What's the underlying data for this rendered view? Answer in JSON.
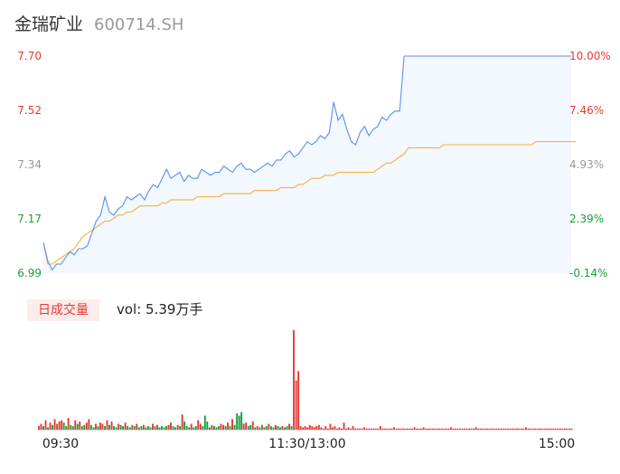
{
  "stock": {
    "name": "金瑞矿业",
    "code": "600714.SH"
  },
  "volume_tab": {
    "label": "日成交量",
    "summary": "vol: 5.39万手"
  },
  "colors": {
    "up": "#e53935",
    "down": "#1a9e3c",
    "neutral": "#999999",
    "price_line": "#5b8ff0",
    "avg_line": "#f0b23c",
    "area_fill": "#f3f7fe"
  },
  "chart_data": {
    "type": "line",
    "x_ticks": [
      "09:30",
      "11:30/13:00",
      "15:00"
    ],
    "y_left_ticks": [
      "7.70",
      "7.52",
      "7.34",
      "7.17",
      "6.99"
    ],
    "y_right_ticks": [
      "10.00%",
      "7.46%",
      "4.93%",
      "2.39%",
      "-0.14%"
    ],
    "ylim": [
      6.99,
      7.7
    ],
    "series": [
      {
        "values": [
          7.09,
          7.03,
          7.0,
          7.02,
          7.02,
          7.04,
          7.06,
          7.05,
          7.07,
          7.07,
          7.08,
          7.12,
          7.16,
          7.18,
          7.24,
          7.19,
          7.18,
          7.2,
          7.21,
          7.24,
          7.23,
          7.24,
          7.25,
          7.23,
          7.26,
          7.28,
          7.27,
          7.3,
          7.33,
          7.3,
          7.31,
          7.32,
          7.29,
          7.31,
          7.3,
          7.3,
          7.33,
          7.32,
          7.31,
          7.32,
          7.32,
          7.34,
          7.33,
          7.32,
          7.34,
          7.35,
          7.33,
          7.33,
          7.32,
          7.33,
          7.34,
          7.35,
          7.34,
          7.36,
          7.36,
          7.38,
          7.39,
          7.37,
          7.38,
          7.4,
          7.42,
          7.41,
          7.42,
          7.44,
          7.43,
          7.45,
          7.55,
          7.49,
          7.51,
          7.46,
          7.42,
          7.41,
          7.45,
          7.47,
          7.44,
          7.46,
          7.47,
          7.5,
          7.49,
          7.51,
          7.52,
          7.52,
          7.7,
          7.7,
          7.7,
          7.7,
          7.7,
          7.7,
          7.7,
          7.7,
          7.7,
          7.7,
          7.7,
          7.7,
          7.7,
          7.7,
          7.7,
          7.7,
          7.7,
          7.7,
          7.7,
          7.7,
          7.7,
          7.7,
          7.7,
          7.7,
          7.7,
          7.7,
          7.7,
          7.7,
          7.7,
          7.7,
          7.7,
          7.7,
          7.7,
          7.7,
          7.7,
          7.7,
          7.7,
          7.7,
          7.7
        ]
      },
      {
        "values": [
          7.09,
          7.02,
          7.02,
          7.03,
          7.04,
          7.05,
          7.06,
          7.07,
          7.09,
          7.11,
          7.12,
          7.13,
          7.14,
          7.15,
          7.16,
          7.16,
          7.17,
          7.18,
          7.18,
          7.19,
          7.19,
          7.2,
          7.21,
          7.21,
          7.21,
          7.21,
          7.21,
          7.22,
          7.22,
          7.23,
          7.23,
          7.23,
          7.23,
          7.23,
          7.23,
          7.24,
          7.24,
          7.24,
          7.24,
          7.24,
          7.24,
          7.25,
          7.25,
          7.25,
          7.25,
          7.25,
          7.25,
          7.25,
          7.26,
          7.26,
          7.26,
          7.26,
          7.26,
          7.26,
          7.27,
          7.27,
          7.27,
          7.27,
          7.28,
          7.28,
          7.29,
          7.3,
          7.3,
          7.3,
          7.31,
          7.31,
          7.31,
          7.32,
          7.32,
          7.32,
          7.32,
          7.32,
          7.32,
          7.32,
          7.32,
          7.32,
          7.33,
          7.34,
          7.35,
          7.35,
          7.36,
          7.37,
          7.38,
          7.4,
          7.4,
          7.4,
          7.4,
          7.4,
          7.4,
          7.4,
          7.4,
          7.41,
          7.41,
          7.41,
          7.41,
          7.41,
          7.41,
          7.41,
          7.41,
          7.41,
          7.41,
          7.41,
          7.41,
          7.41,
          7.41,
          7.41,
          7.41,
          7.41,
          7.41,
          7.41,
          7.41,
          7.41,
          7.42,
          7.42,
          7.42,
          7.42,
          7.42,
          7.42,
          7.42,
          7.42,
          7.42,
          7.42
        ]
      }
    ],
    "volume": {
      "values": [
        3,
        5,
        3,
        8,
        2,
        6,
        4,
        9,
        5,
        7,
        8,
        6,
        3,
        10,
        4,
        3,
        8,
        5,
        7,
        3,
        4,
        6,
        9,
        4,
        2,
        5,
        3,
        6,
        5,
        3,
        8,
        4,
        7,
        3,
        2,
        5,
        4,
        3,
        6,
        3,
        2,
        4,
        3,
        5,
        2,
        3,
        4,
        2,
        3,
        2,
        5,
        3,
        4,
        2,
        3,
        2,
        3,
        4,
        6,
        3,
        2,
        4,
        3,
        13,
        7,
        3,
        2,
        5,
        2,
        3,
        8,
        5,
        3,
        12,
        7,
        2,
        4,
        3,
        2,
        3,
        5,
        4,
        3,
        6,
        3,
        9,
        4,
        14,
        12,
        15,
        5,
        6,
        3,
        4,
        7,
        2,
        3,
        2,
        4,
        2,
        3,
        5,
        3,
        2,
        4,
        3,
        2,
        3,
        2,
        3,
        5,
        3,
        85,
        42,
        50,
        3,
        2,
        3,
        2,
        4,
        3,
        2,
        3,
        4,
        2,
        1,
        3,
        1,
        5,
        2,
        3,
        1,
        2,
        1,
        6,
        1,
        2,
        1,
        3,
        1,
        1,
        1,
        1,
        2,
        1,
        1,
        1,
        1,
        1,
        1,
        3,
        1,
        1,
        1,
        1,
        1,
        2,
        1,
        1,
        1,
        1,
        1,
        1,
        1,
        1,
        2,
        1,
        1,
        1,
        2,
        1,
        1,
        1,
        1,
        1,
        1,
        1,
        1,
        1,
        1,
        1,
        2,
        1,
        1,
        1,
        1,
        1,
        1,
        1,
        1,
        1,
        1,
        2,
        1,
        1,
        1,
        1,
        1,
        1,
        1,
        1,
        1,
        1,
        1,
        1,
        1,
        1,
        1,
        1,
        1,
        1,
        1,
        1,
        1,
        2,
        1,
        1,
        1,
        1,
        1,
        1,
        1,
        1,
        1,
        1,
        1,
        1,
        1,
        1,
        1,
        1,
        1,
        1,
        1,
        1
      ],
      "up": [
        1,
        1,
        0,
        1,
        0,
        1,
        0,
        1,
        1,
        1,
        1,
        0,
        0,
        1,
        0,
        0,
        1,
        0,
        1,
        0,
        0,
        1,
        1,
        0,
        0,
        1,
        0,
        1,
        1,
        0,
        1,
        0,
        1,
        0,
        0,
        1,
        0,
        0,
        1,
        0,
        0,
        1,
        0,
        1,
        0,
        0,
        1,
        0,
        0,
        0,
        1,
        0,
        1,
        0,
        0,
        0,
        0,
        1,
        1,
        0,
        0,
        1,
        0,
        1,
        0,
        0,
        0,
        1,
        0,
        0,
        1,
        1,
        0,
        0,
        0,
        0,
        1,
        0,
        0,
        0,
        1,
        1,
        0,
        1,
        0,
        1,
        0,
        0,
        0,
        0,
        1,
        1,
        0,
        0,
        1,
        0,
        1,
        0,
        1,
        0,
        0,
        1,
        0,
        0,
        1,
        0,
        0,
        1,
        0,
        0,
        1,
        0,
        1,
        1,
        1,
        1,
        1,
        1,
        1,
        1,
        1,
        1,
        1,
        1,
        1,
        1,
        1,
        1,
        1,
        1,
        1,
        1,
        1,
        1,
        1,
        1,
        1,
        1,
        1,
        1,
        1,
        1,
        1,
        1,
        1,
        1,
        1,
        1,
        1,
        1,
        1,
        1,
        1,
        1,
        1,
        1,
        1,
        1,
        1,
        1,
        1,
        1,
        1,
        1,
        1,
        1,
        1,
        1,
        1,
        1,
        1,
        1,
        1,
        1,
        1,
        1,
        1,
        1,
        1,
        1,
        1,
        1,
        1,
        1,
        1,
        1,
        1,
        1,
        1,
        1,
        1,
        1,
        1,
        1,
        1,
        1,
        1,
        1,
        1,
        1,
        1,
        1,
        1,
        1,
        1,
        1,
        1,
        1,
        1,
        1,
        1,
        1,
        1,
        1,
        1,
        1,
        1,
        1,
        1,
        1,
        1,
        1,
        1,
        1,
        1,
        1,
        1,
        1,
        1,
        1,
        1,
        1,
        1,
        1,
        1,
        1,
        1
      ]
    }
  }
}
